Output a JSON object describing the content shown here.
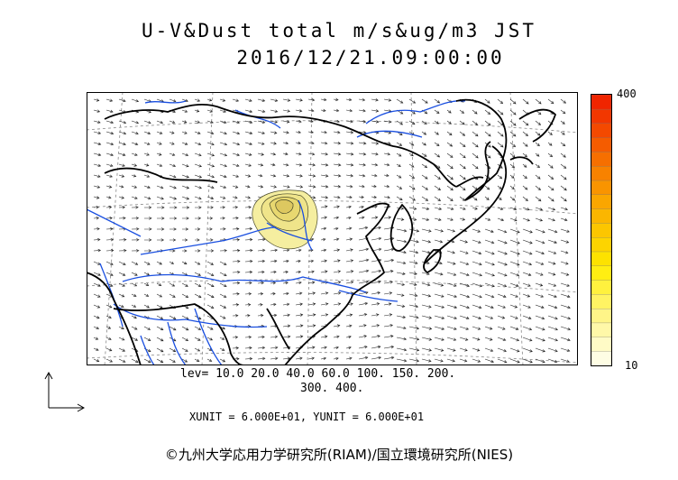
{
  "header": {
    "title_line1": "U-V&Dust total m/s&ug/m3 JST",
    "title_line2": "2016/12/21.09:00:00"
  },
  "colorbar": {
    "max_label": "400",
    "min_label": "10",
    "colors_bottom_to_top": [
      "#fefde4",
      "#fffbc6",
      "#fff8a8",
      "#fff588",
      "#fff363",
      "#fff13e",
      "#ffee12",
      "#fde200",
      "#fdd400",
      "#fcc600",
      "#fbb600",
      "#faa600",
      "#f99400",
      "#f88200",
      "#f66f00",
      "#f55c00",
      "#f44900",
      "#f23700",
      "#f02500"
    ]
  },
  "contour_levels": {
    "line1": "lev= 10.0 20.0 40.0 60.0 100. 150. 200.",
    "line2": "300. 400."
  },
  "units": {
    "text": "XUNIT = 6.000E+01, YUNIT = 6.000E+01"
  },
  "credit": {
    "text": "©九州大学応用力学研究所(RIAM)/国立環境研究所(NIES)"
  },
  "map": {
    "coastline_color": "#000000",
    "river_color": "#1a4fe0",
    "dust_fill_color": "#f5eea0",
    "dust_contour_color": "#4a4a2a",
    "gridline_color": "#888888",
    "vector_color": "#222222"
  }
}
